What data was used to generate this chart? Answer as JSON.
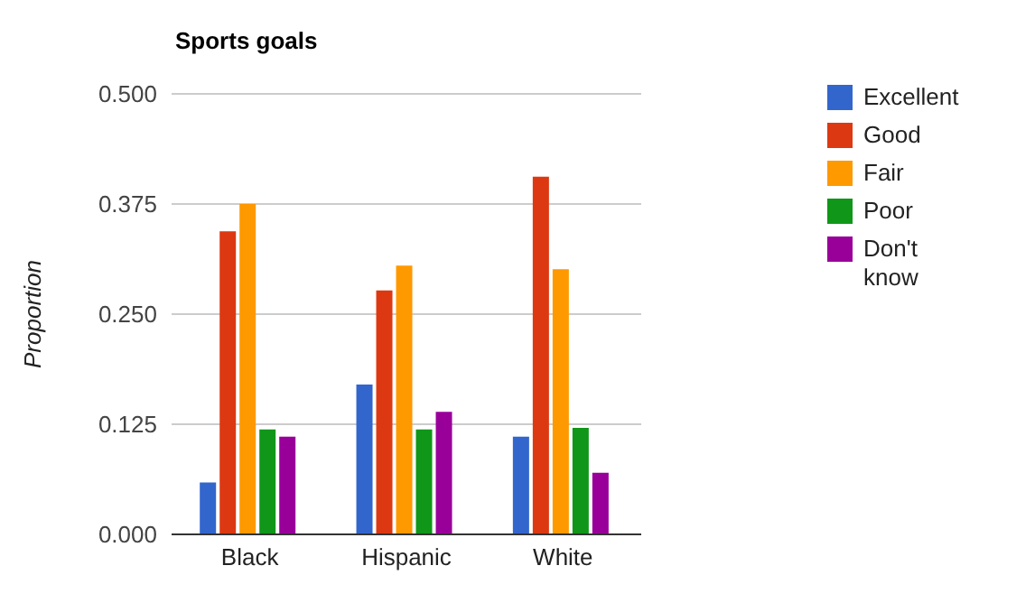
{
  "chart_data": {
    "type": "bar",
    "title": "Sports goals",
    "ylabel": "Proportion",
    "categories": [
      "Black",
      "Hispanic",
      "White"
    ],
    "series": [
      {
        "name": "Excellent",
        "color": "#3366cc",
        "values": [
          0.059,
          0.17,
          0.111
        ]
      },
      {
        "name": "Good",
        "color": "#dc3912",
        "values": [
          0.344,
          0.277,
          0.406
        ]
      },
      {
        "name": "Fair",
        "color": "#ff9900",
        "values": [
          0.375,
          0.305,
          0.301
        ]
      },
      {
        "name": "Poor",
        "color": "#109618",
        "values": [
          0.119,
          0.119,
          0.121
        ]
      },
      {
        "name": "Don't know",
        "color": "#990099",
        "values": [
          0.111,
          0.139,
          0.07
        ]
      }
    ],
    "ylim": [
      0,
      0.5
    ],
    "yticks": [
      {
        "value": 0,
        "label": "0.000"
      },
      {
        "value": 0.125,
        "label": "0.125"
      },
      {
        "value": 0.25,
        "label": "0.250"
      },
      {
        "value": 0.375,
        "label": "0.375"
      },
      {
        "value": 0.5,
        "label": "0.500"
      }
    ],
    "grid": "y",
    "legend": "top right"
  }
}
